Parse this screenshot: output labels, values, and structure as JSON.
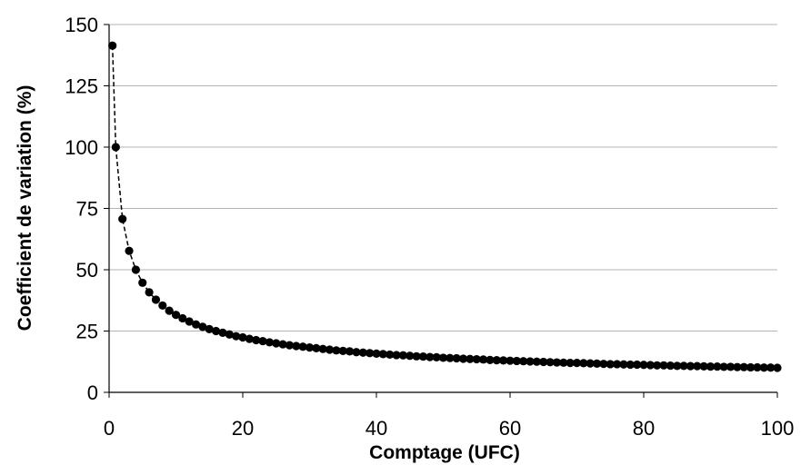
{
  "chart_data": {
    "type": "line",
    "title": "",
    "xlabel": "Comptage (UFC)",
    "ylabel": "Coefficient de variation (%)",
    "xlim": [
      0,
      100
    ],
    "ylim": [
      0,
      150
    ],
    "xticks": [
      0,
      20,
      40,
      60,
      80,
      100
    ],
    "yticks": [
      0,
      25,
      50,
      75,
      100,
      125,
      150
    ],
    "grid": "horizontal",
    "legend": "none",
    "colors": {
      "series": "#000000",
      "grid": "#b3b3b3",
      "axis": "#000000"
    },
    "series": [
      {
        "line_style": "dashed",
        "marker": "filled-circle",
        "x": [
          0.5,
          1,
          2,
          3,
          4,
          5,
          6,
          7,
          8,
          9,
          10,
          11,
          12,
          13,
          14,
          15,
          16,
          17,
          18,
          19,
          20,
          21,
          22,
          23,
          24,
          25,
          26,
          27,
          28,
          29,
          30,
          31,
          32,
          33,
          34,
          35,
          36,
          37,
          38,
          39,
          40,
          41,
          42,
          43,
          44,
          45,
          46,
          47,
          48,
          49,
          50,
          51,
          52,
          53,
          54,
          55,
          56,
          57,
          58,
          59,
          60,
          61,
          62,
          63,
          64,
          65,
          66,
          67,
          68,
          69,
          70,
          71,
          72,
          73,
          74,
          75,
          76,
          77,
          78,
          79,
          80,
          81,
          82,
          83,
          84,
          85,
          86,
          87,
          88,
          89,
          90,
          91,
          92,
          93,
          94,
          95,
          96,
          97,
          98,
          99,
          100
        ],
        "y": [
          141.4,
          100.0,
          70.7,
          57.7,
          50.0,
          44.7,
          40.8,
          37.8,
          35.4,
          33.3,
          31.6,
          30.2,
          28.9,
          27.7,
          26.7,
          25.8,
          25.0,
          24.3,
          23.6,
          22.9,
          22.4,
          21.8,
          21.3,
          20.9,
          20.4,
          20.0,
          19.6,
          19.2,
          18.9,
          18.6,
          18.3,
          18.0,
          17.7,
          17.4,
          17.1,
          16.9,
          16.7,
          16.4,
          16.2,
          16.0,
          15.8,
          15.6,
          15.4,
          15.2,
          15.1,
          14.9,
          14.7,
          14.6,
          14.4,
          14.3,
          14.1,
          14.0,
          13.9,
          13.7,
          13.6,
          13.5,
          13.4,
          13.2,
          13.1,
          13.0,
          12.9,
          12.8,
          12.7,
          12.6,
          12.5,
          12.4,
          12.3,
          12.2,
          12.1,
          12.0,
          12.0,
          11.9,
          11.8,
          11.7,
          11.6,
          11.5,
          11.5,
          11.4,
          11.3,
          11.3,
          11.2,
          11.1,
          11.0,
          11.0,
          10.9,
          10.8,
          10.8,
          10.7,
          10.7,
          10.6,
          10.5,
          10.5,
          10.4,
          10.4,
          10.3,
          10.3,
          10.2,
          10.2,
          10.1,
          10.1,
          10.0
        ]
      }
    ]
  }
}
